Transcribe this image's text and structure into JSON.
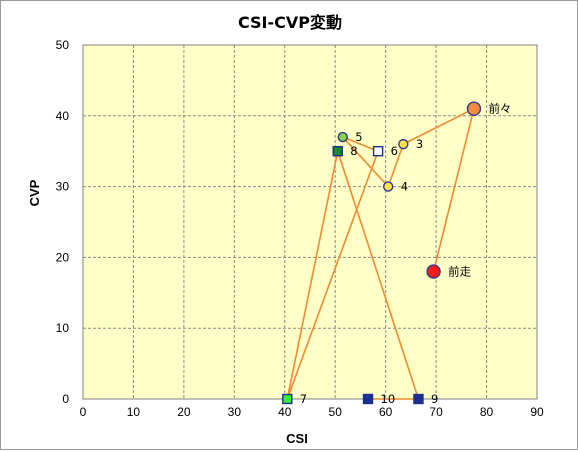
{
  "chart_data": {
    "type": "scatter",
    "title": "CSI-CVP変動",
    "xlabel": "CSI",
    "ylabel": "CVP",
    "xlim": [
      0,
      90
    ],
    "ylim": [
      0,
      50
    ],
    "xticks": [
      "0",
      "10",
      "20",
      "30",
      "40",
      "50",
      "60",
      "70",
      "80",
      "90"
    ],
    "yticks": [
      "0",
      "10",
      "20",
      "30",
      "40",
      "50"
    ],
    "grid": true,
    "plot_bg": "#ffffc8",
    "line_color": "#f08a30",
    "points": [
      {
        "label": "前走",
        "x": 69.5,
        "y": 18,
        "shape": "circle",
        "color": "#ff1a1a",
        "size": "large"
      },
      {
        "label": "前々",
        "x": 77.5,
        "y": 41,
        "shape": "circle",
        "color": "#f58c42",
        "size": "large"
      },
      {
        "label": "3",
        "x": 63.5,
        "y": 36,
        "shape": "circle",
        "color": "#ffe14a",
        "size": "small"
      },
      {
        "label": "4",
        "x": 60.5,
        "y": 30,
        "shape": "circle",
        "color": "#ffe14a",
        "size": "small"
      },
      {
        "label": "5",
        "x": 51.5,
        "y": 37,
        "shape": "circle",
        "color": "#8ad04a",
        "size": "small"
      },
      {
        "label": "6",
        "x": 58.5,
        "y": 35,
        "shape": "square",
        "color": "#ffffff",
        "size": "small"
      },
      {
        "label": "7",
        "x": 40.5,
        "y": 0,
        "shape": "square",
        "color": "#33ee33",
        "size": "small"
      },
      {
        "label": "8",
        "x": 50.5,
        "y": 35,
        "shape": "square",
        "color": "#1a8a2a",
        "size": "small"
      },
      {
        "label": "9",
        "x": 66.5,
        "y": 0,
        "shape": "square",
        "color": "#1a2f8f",
        "size": "small"
      },
      {
        "label": "10",
        "x": 56.5,
        "y": 0,
        "shape": "square",
        "color": "#1a2f8f",
        "size": "small"
      }
    ]
  }
}
